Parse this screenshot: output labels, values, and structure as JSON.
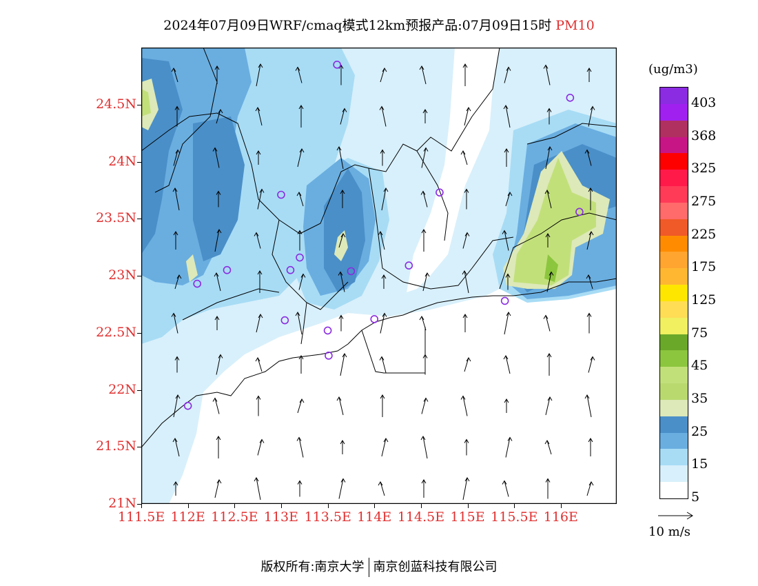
{
  "title": {
    "main": "2024年07月09日WRF/cmaq模式12km预报产品:07月09日15时",
    "pollutant": "PM10"
  },
  "axes": {
    "lat_labels": [
      "24.5N",
      "24N",
      "23.5N",
      "23N",
      "22.5N",
      "22N",
      "21.5N",
      "21N"
    ],
    "lat_values": [
      24.5,
      24.0,
      23.5,
      23.0,
      22.5,
      22.0,
      21.5,
      21.0
    ],
    "lon_labels": [
      "111.5E",
      "112E",
      "112.5E",
      "113E",
      "113.5E",
      "114E",
      "114.5E",
      "115E",
      "115.5E",
      "116E"
    ],
    "lon_values": [
      111.5,
      112.0,
      112.5,
      113.0,
      113.5,
      114.0,
      114.5,
      115.0,
      115.5,
      116.0
    ],
    "lon_range": [
      111.5,
      116.6
    ],
    "lat_range": [
      21.0,
      25.0
    ]
  },
  "legend": {
    "unit": "(ug/m3)",
    "labels": [
      "403",
      "368",
      "325",
      "275",
      "225",
      "175",
      "125",
      "75",
      "45",
      "35",
      "25",
      "15",
      "5"
    ],
    "colors": [
      "#8b2be2",
      "#a020f0",
      "#b03060",
      "#c71585",
      "#ff0000",
      "#ff1a4a",
      "#ff3b58",
      "#ff6a6a",
      "#f05a28",
      "#ff8c00",
      "#ffa530",
      "#ffb732",
      "#ffe600",
      "#ffdd55",
      "#f0f060",
      "#6aa82a",
      "#8cc63e",
      "#c2e07a",
      "#b9d96e",
      "#dde9b8",
      "#4a8fc8",
      "#6aaee0",
      "#a8dcf5",
      "#d8f0fb",
      "#ffffff"
    ]
  },
  "wind_reference": {
    "label": "10 m/s"
  },
  "footer": {
    "owner": "版权所有:南京大学",
    "company": "南京创蓝科技有限公司"
  },
  "map": {
    "colors": {
      "c5": "#d8f0fb",
      "c15": "#a8dcf5",
      "c20": "#6aaee0",
      "c25": "#4a8fc8",
      "c35": "#c2e07a",
      "c30": "#dde9b8",
      "c45": "#8cc63e"
    },
    "stations": [
      [
        113.6,
        24.85
      ],
      [
        116.1,
        24.56
      ],
      [
        113.0,
        23.71
      ],
      [
        114.7,
        23.73
      ],
      [
        116.2,
        23.56
      ],
      [
        113.2,
        23.16
      ],
      [
        113.1,
        23.05
      ],
      [
        112.42,
        23.05
      ],
      [
        113.75,
        23.04
      ],
      [
        114.37,
        23.09
      ],
      [
        112.1,
        22.93
      ],
      [
        115.4,
        22.78
      ],
      [
        113.04,
        22.61
      ],
      [
        114.0,
        22.62
      ],
      [
        113.5,
        22.52
      ],
      [
        113.51,
        22.3
      ],
      [
        112.0,
        21.86
      ]
    ]
  }
}
